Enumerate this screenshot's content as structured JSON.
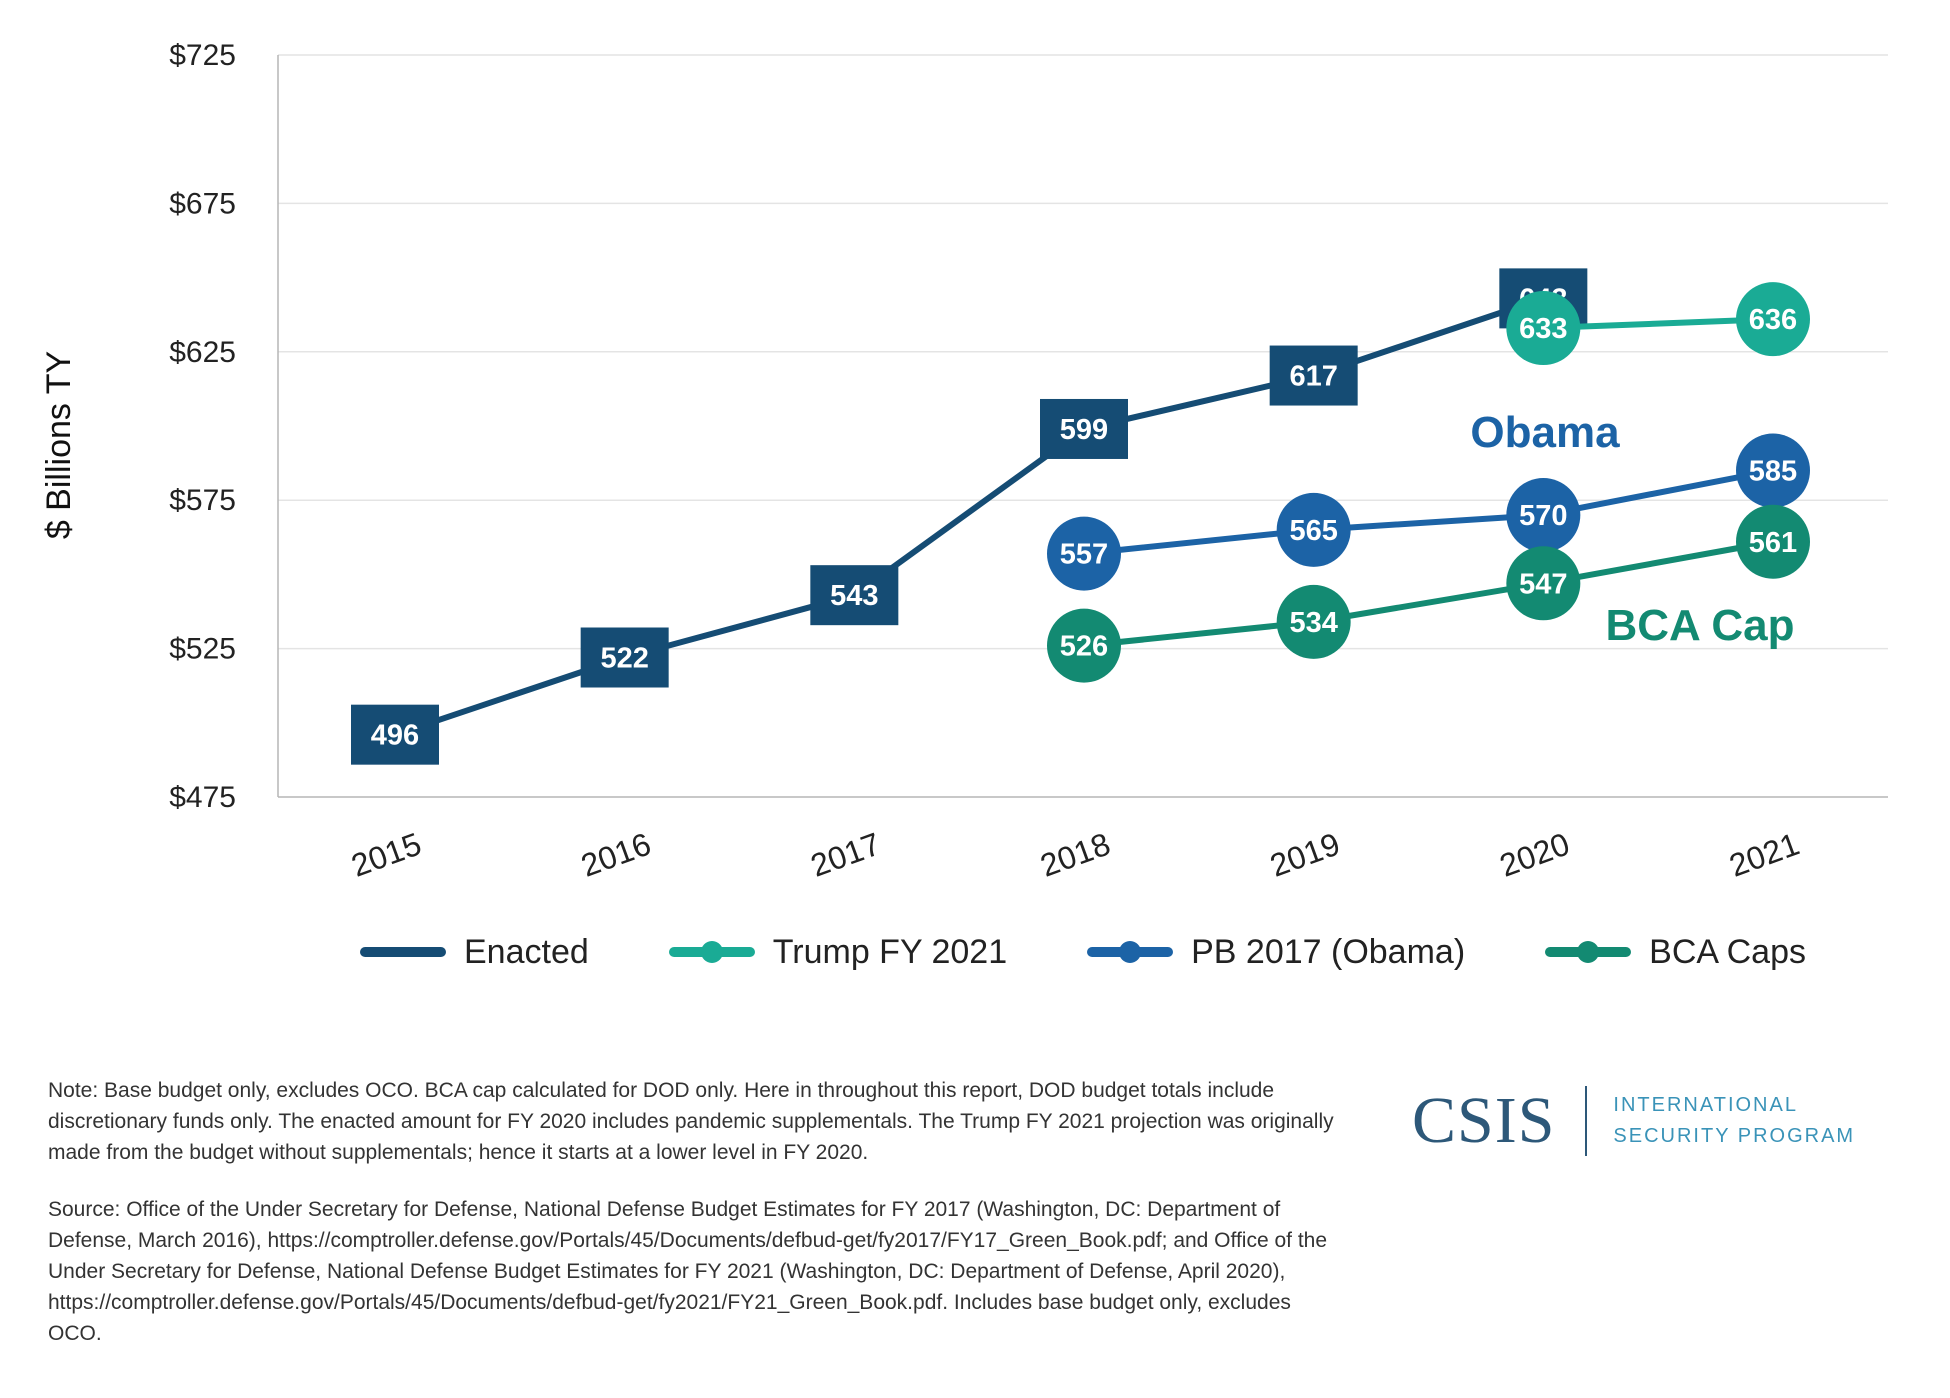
{
  "chart_data": {
    "type": "line",
    "title": "",
    "ylabel": "$ Billions TY",
    "xlabel": "",
    "ylim": [
      475,
      725
    ],
    "yticks": [
      475,
      525,
      575,
      625,
      675,
      725
    ],
    "ytick_prefix": "$",
    "categories": [
      "2015",
      "2016",
      "2017",
      "2018",
      "2019",
      "2020",
      "2021"
    ],
    "grid": true,
    "legend_position": "bottom",
    "series": [
      {
        "name": "Enacted",
        "marker": "square",
        "color": "#154c74",
        "values": [
          496,
          522,
          543,
          599,
          617,
          643,
          null
        ]
      },
      {
        "name": "Trump FY 2021",
        "marker": "circle",
        "color": "#1aab95",
        "values": [
          null,
          null,
          null,
          null,
          null,
          633,
          636
        ]
      },
      {
        "name": "PB 2017 (Obama)",
        "marker": "circle",
        "color": "#1c63a6",
        "values": [
          null,
          null,
          null,
          557,
          565,
          570,
          585
        ]
      },
      {
        "name": "BCA Caps",
        "marker": "circle",
        "color": "#138a72",
        "values": [
          null,
          null,
          null,
          526,
          534,
          547,
          561
        ]
      }
    ],
    "annotations": [
      {
        "text": "Obama",
        "color": "#1c63a6"
      },
      {
        "text": "BCA Cap",
        "color": "#138a72"
      }
    ]
  },
  "notes": {
    "note": "Note: Base budget only, excludes OCO. BCA cap calculated for DOD only. Here in throughout this report, DOD budget totals include discretionary funds only. The enacted amount for FY 2020 includes pandemic supplementals. The Trump FY 2021 projection was originally made from the budget without supplementals; hence it starts at a lower level in FY 2020.",
    "source": "Source: Office of the Under Secretary for Defense, National Defense Budget Estimates for FY 2017 (Washington, DC: Department of Defense, March 2016), https://comptroller.defense.gov/Portals/45/Documents/defbud-get/fy2017/FY17_Green_Book.pdf; and Office of the Under Secretary for Defense, National Defense Budget Estimates for FY 2021 (Washington, DC: Department of Defense, April 2020), https://comptroller.defense.gov/Portals/45/Documents/defbud-get/fy2021/FY21_Green_Book.pdf. Includes base budget only, excludes OCO."
  },
  "logo": {
    "name": "CSIS",
    "line1": "INTERNATIONAL",
    "line2": "SECURITY PROGRAM",
    "color": "#2d5879",
    "sub_color": "#3a93b8"
  }
}
